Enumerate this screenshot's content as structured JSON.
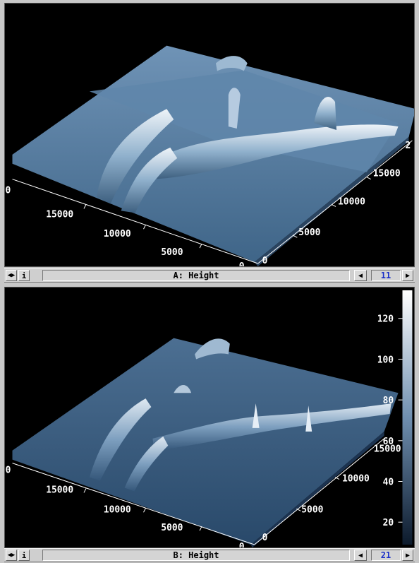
{
  "panel_a": {
    "title": "A: Height",
    "frame_number": "11",
    "axis_left_ticks": [
      "15000",
      "10000",
      "5000",
      "0"
    ],
    "axis_right_ticks": [
      "15000",
      "10000",
      "5000",
      "0"
    ],
    "axis_left_edge_label": "0",
    "axis_right_edge_label": "2"
  },
  "panel_b": {
    "title": "B: Height",
    "frame_number": "21",
    "axis_left_ticks": [
      "15000",
      "10000",
      "5000",
      "0"
    ],
    "axis_right_ticks": [
      "15000",
      "10000",
      "5000",
      "0"
    ],
    "axis_left_edge_label": "0",
    "colorbar_ticks": [
      "120",
      "100",
      "80",
      "60",
      "40",
      "20"
    ]
  },
  "controls": {
    "info_label": "i",
    "nav_both_icon": "left-right-arrows-icon",
    "prev_icon": "triangle-left-icon",
    "next_icon": "triangle-right-icon"
  }
}
